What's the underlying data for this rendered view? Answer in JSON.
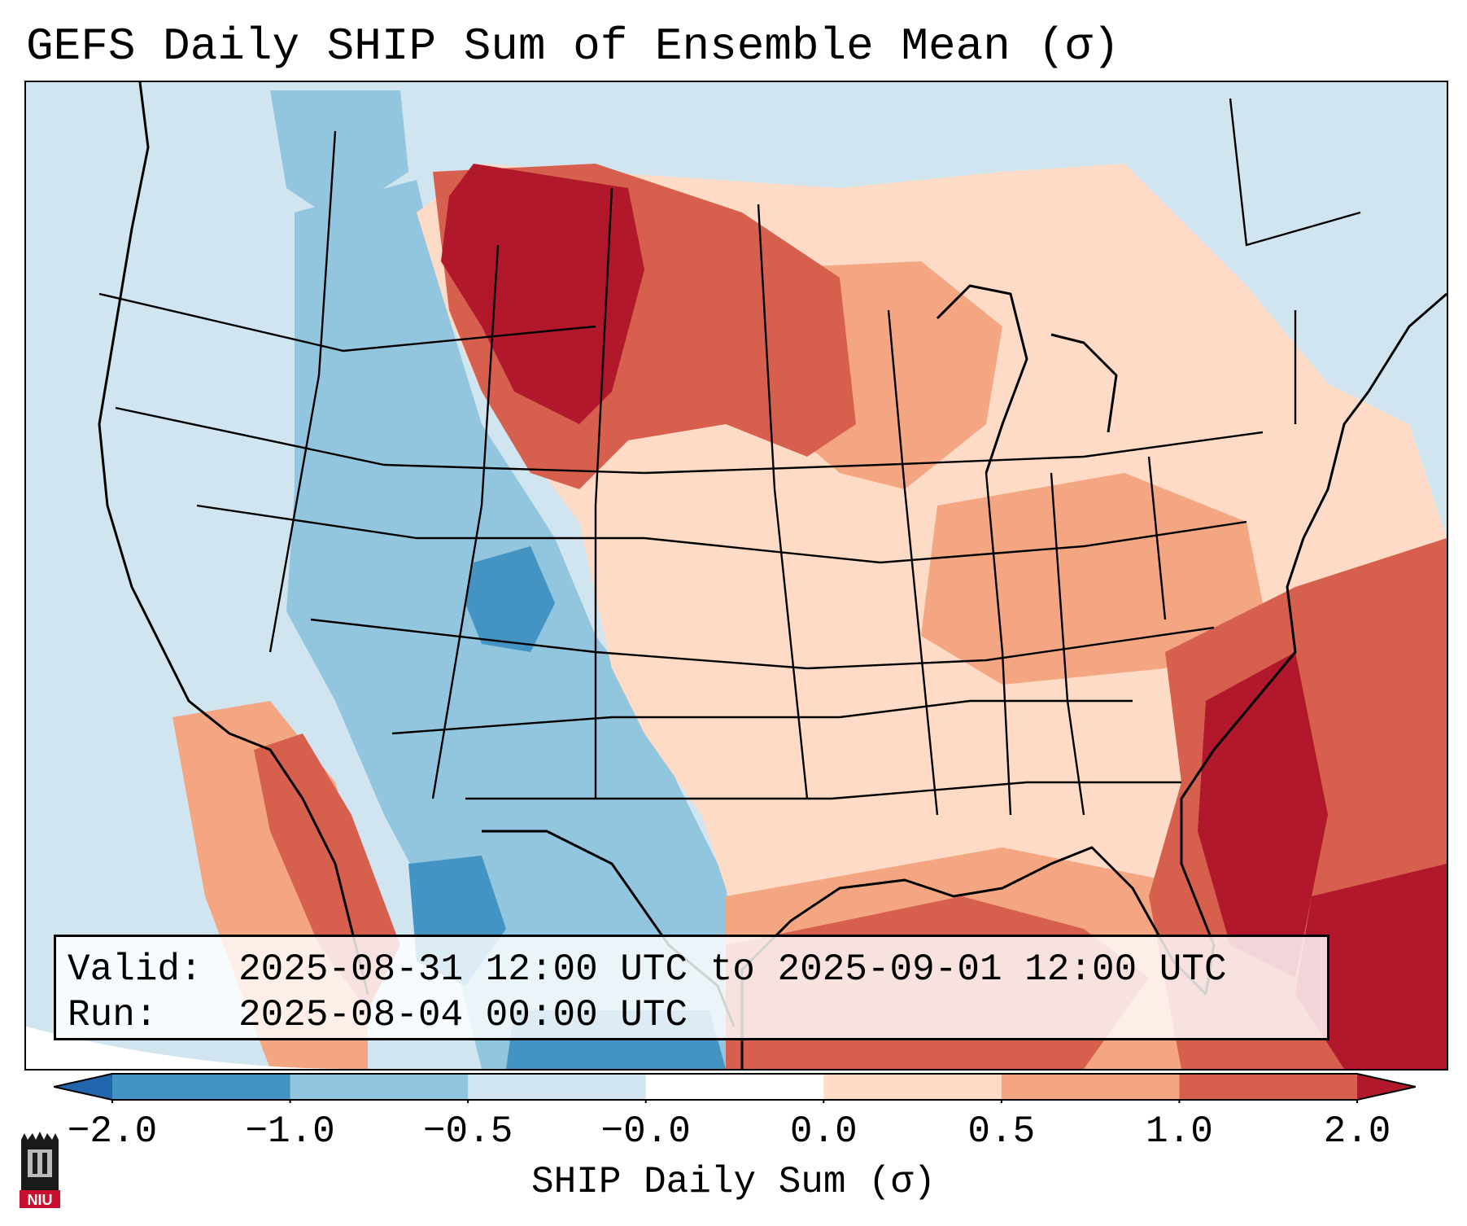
{
  "title": "GEFS Daily SHIP Sum of Ensemble Mean (σ)",
  "info": {
    "valid_label": "Valid:",
    "valid_value": "2025-08-31 12:00 UTC to 2025-09-01 12:00 UTC",
    "run_label": "Run:",
    "run_value": "2025-08-04 00:00 UTC"
  },
  "colorbar": {
    "label": "SHIP Daily Sum (σ)",
    "ticks": [
      "−2.0",
      "−1.0",
      "−0.5",
      "−0.0",
      "0.0",
      "0.5",
      "1.0",
      "2.0"
    ],
    "colors": [
      "#2166ac",
      "#4393c3",
      "#92c5de",
      "#d1e5f0",
      "#ffffff",
      "#fddbc7",
      "#f4a582",
      "#d6604d",
      "#b2182b"
    ]
  },
  "logo": {
    "text": "NIU",
    "icon": "niu-tower-logo-icon"
  }
}
